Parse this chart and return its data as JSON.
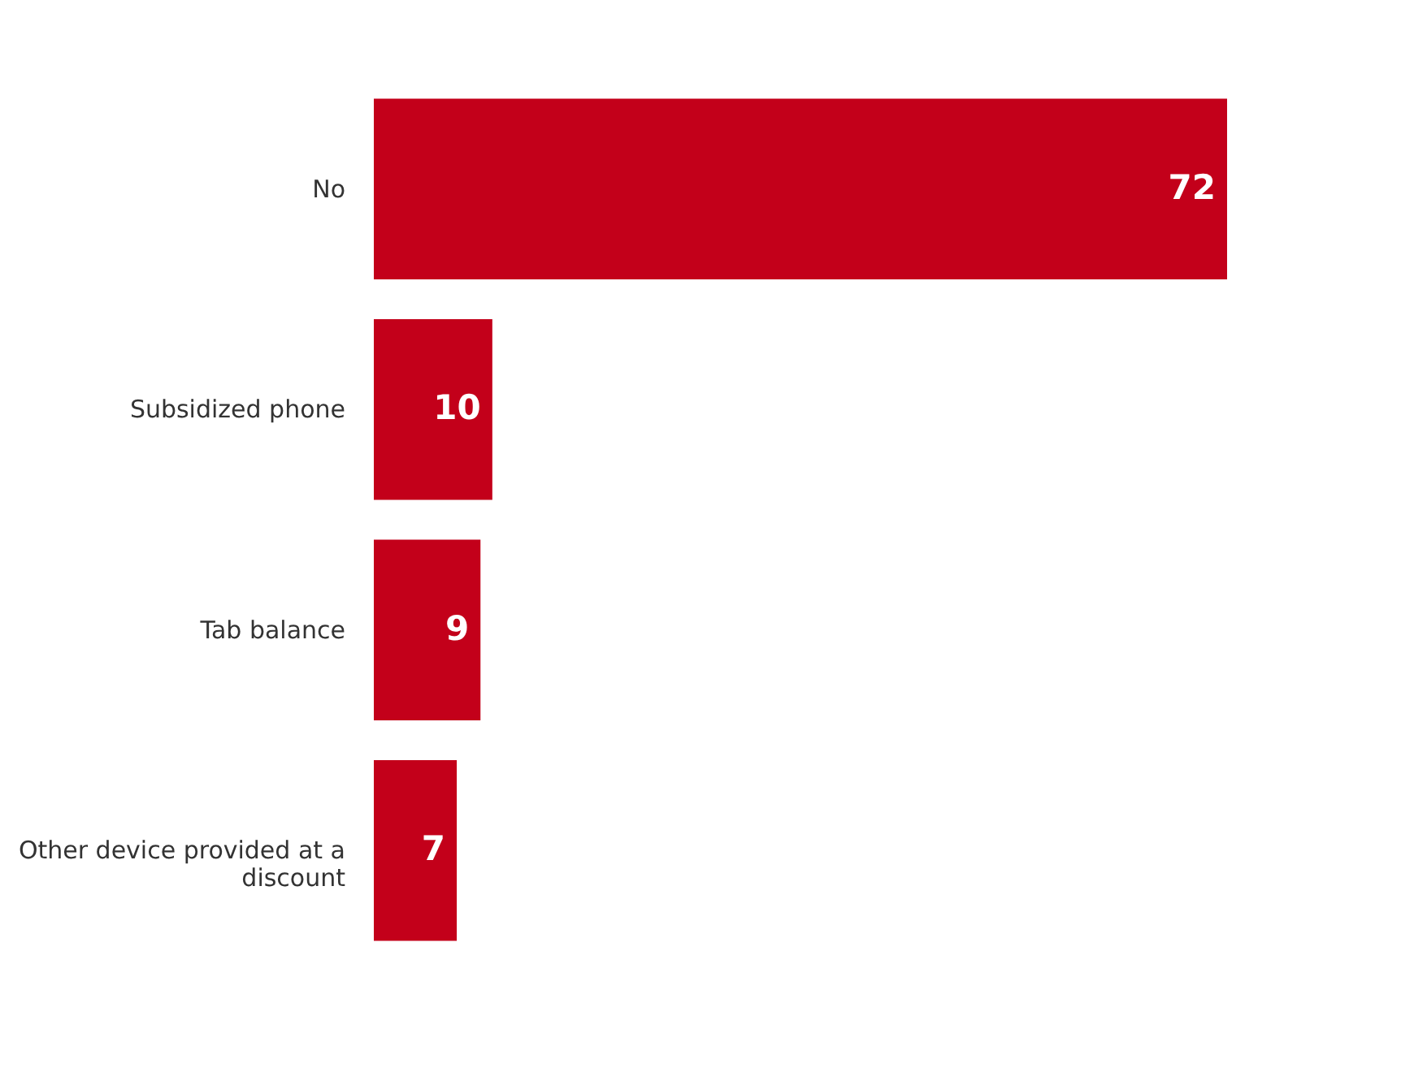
{
  "chart_data": {
    "type": "bar",
    "orientation": "horizontal",
    "categories": [
      "No",
      "Subsidized phone",
      "Tab balance",
      "Other device provided at a discount"
    ],
    "values": [
      72,
      10,
      9,
      7
    ],
    "color": "#c3001a",
    "data_labels": true
  }
}
